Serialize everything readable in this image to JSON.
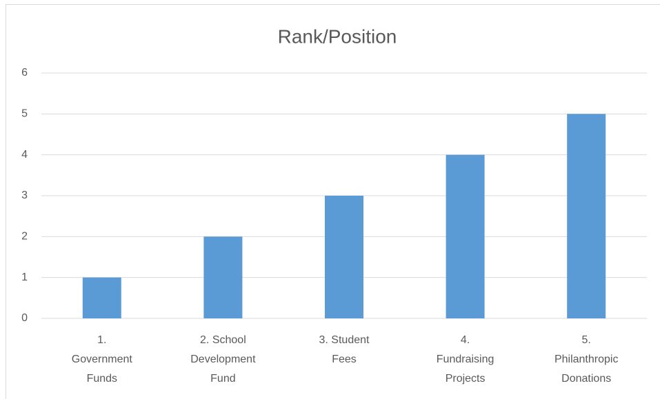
{
  "chart_data": {
    "type": "bar",
    "title": "Rank/Position",
    "categories": [
      "1. Government Funds",
      "2. School Development Fund",
      "3. Student Fees",
      "4. Fundraising Projects",
      "5. Philanthropic Donations"
    ],
    "values": [
      1,
      2,
      3,
      4,
      5
    ],
    "color": "#5b9bd5",
    "ylim": [
      0,
      6
    ],
    "yticks": [
      0,
      1,
      2,
      3,
      4,
      5,
      6
    ],
    "grid": true
  }
}
